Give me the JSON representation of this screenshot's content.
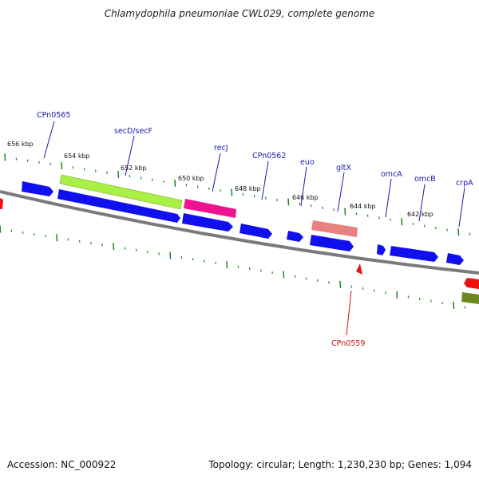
{
  "title": "Chlamydophila pneumoniae CWL029, complete genome",
  "accession": "Accession: NC_000922",
  "summary": "Topology: circular; Length: 1,230,230 bp; Genes: 1,094",
  "scale_labels": [
    "656 kbp",
    "654 kbp",
    "652 kbp",
    "650 kbp",
    "648 kbp",
    "646 kbp",
    "644 kbp",
    "642 kbp"
  ],
  "gene_labels_upper": [
    "CPn0565",
    "secD/secF",
    "recJ",
    "CPn0562",
    "euo",
    "gltX",
    "omcA",
    "omcB",
    "crpA"
  ],
  "gene_labels_lower": [
    "CPn0559"
  ],
  "colors": {
    "gene_blue": "#1010ee",
    "label_blue": "#1a1aa8",
    "label_red": "#cc1111",
    "backbone": "#7a7a7a",
    "ticks": "#1a8a1a",
    "green_block": "#aaf044",
    "magenta_block": "#ee1190",
    "salmon_block": "#e88080",
    "red_gene": "#ee1111",
    "olive_block": "#6a8a20"
  }
}
